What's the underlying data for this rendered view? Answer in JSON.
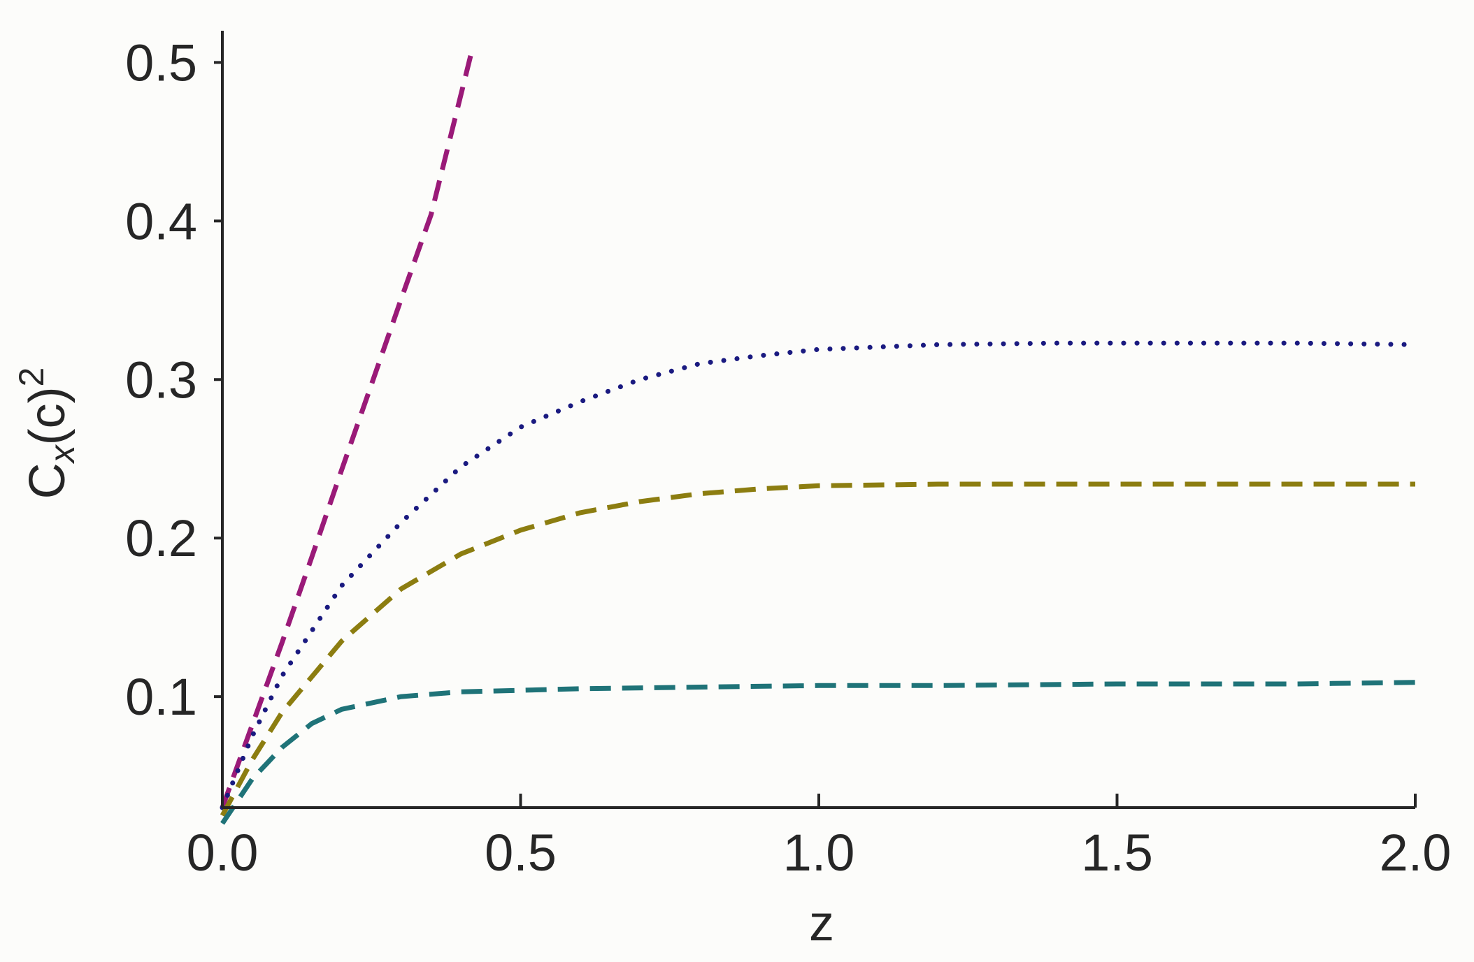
{
  "chart_data": {
    "type": "line",
    "xlabel": "z",
    "ylabel": {
      "base": "C",
      "sub": "x",
      "paren": "(c)",
      "sup": "2"
    },
    "xlim": [
      0.0,
      2.0
    ],
    "ylim": [
      0.03,
      0.52
    ],
    "xticks": [
      0.0,
      0.5,
      1.0,
      1.5,
      2.0
    ],
    "xtick_labels": [
      "0.0",
      "0.5",
      "1.0",
      "1.5",
      "2.0"
    ],
    "yticks": [
      0.1,
      0.2,
      0.3,
      0.4,
      0.5
    ],
    "ytick_labels": [
      "0.1",
      "0.2",
      "0.3",
      "0.4",
      "0.5"
    ],
    "grid": false,
    "legend": "none",
    "series": [
      {
        "color": "#9a1a78",
        "style": "dashed",
        "x": [
          0.0,
          0.05,
          0.1,
          0.15,
          0.2,
          0.25,
          0.3,
          0.35,
          0.42
        ],
        "y": [
          0.03,
          0.082,
          0.134,
          0.188,
          0.243,
          0.297,
          0.351,
          0.404,
          0.51
        ]
      },
      {
        "color": "#1a1a80",
        "style": "dotted",
        "x": [
          0.0,
          0.05,
          0.1,
          0.2,
          0.3,
          0.4,
          0.5,
          0.6,
          0.7,
          0.8,
          0.9,
          1.0,
          1.2,
          1.4,
          1.6,
          1.8,
          2.0
        ],
        "y": [
          0.03,
          0.075,
          0.113,
          0.17,
          0.21,
          0.245,
          0.27,
          0.286,
          0.3,
          0.31,
          0.315,
          0.319,
          0.322,
          0.323,
          0.323,
          0.323,
          0.322
        ]
      },
      {
        "color": "#8c7d10",
        "style": "dashed",
        "x": [
          0.0,
          0.05,
          0.1,
          0.2,
          0.3,
          0.4,
          0.5,
          0.6,
          0.7,
          0.8,
          0.9,
          1.0,
          1.2,
          1.4,
          1.6,
          1.8,
          2.0
        ],
        "y": [
          0.025,
          0.06,
          0.09,
          0.135,
          0.168,
          0.19,
          0.205,
          0.216,
          0.223,
          0.228,
          0.231,
          0.233,
          0.234,
          0.234,
          0.234,
          0.234,
          0.234
        ]
      },
      {
        "color": "#1f7378",
        "style": "dashed",
        "x": [
          0.0,
          0.05,
          0.1,
          0.15,
          0.2,
          0.3,
          0.4,
          0.5,
          0.6,
          0.8,
          1.0,
          1.2,
          1.5,
          1.8,
          2.0
        ],
        "y": [
          0.02,
          0.048,
          0.068,
          0.083,
          0.092,
          0.1,
          0.103,
          0.104,
          0.105,
          0.106,
          0.107,
          0.107,
          0.108,
          0.108,
          0.109
        ]
      }
    ]
  }
}
